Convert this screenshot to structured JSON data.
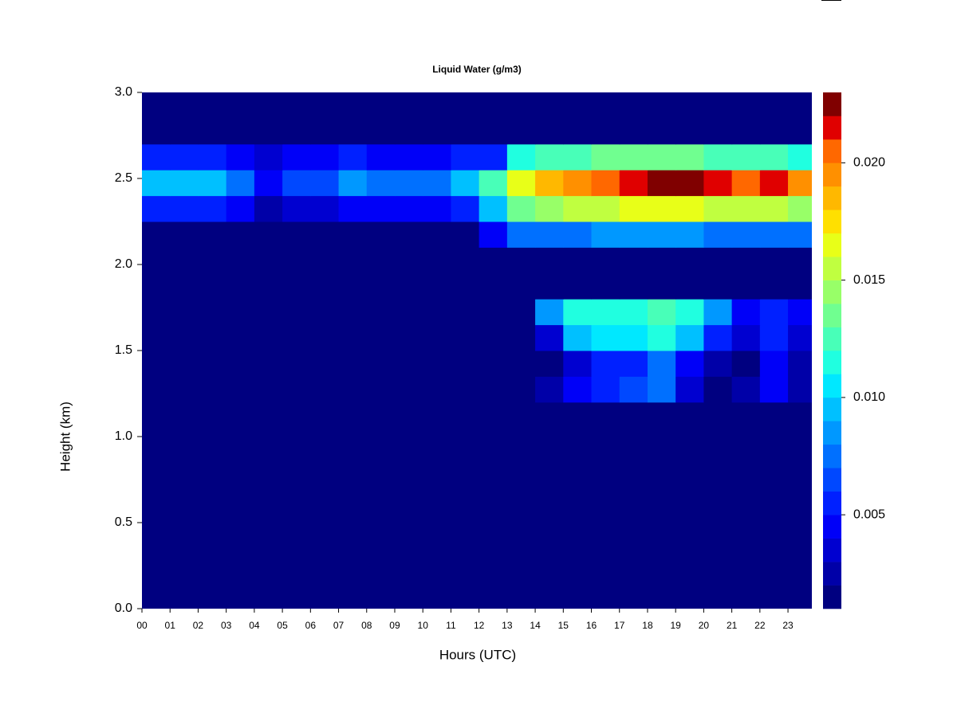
{
  "chart_data": {
    "type": "heatmap",
    "title": "Liquid Water (g/m3)",
    "x_label": "Hours (UTC)",
    "y_label": "Height (km)",
    "xlim": [
      0,
      23.85
    ],
    "ylim": [
      0,
      3
    ],
    "xticks": [
      {
        "value": 0,
        "label": "00"
      },
      {
        "value": 1,
        "label": "01"
      },
      {
        "value": 2,
        "label": "02"
      },
      {
        "value": 3,
        "label": "03"
      },
      {
        "value": 4,
        "label": "04"
      },
      {
        "value": 5,
        "label": "05"
      },
      {
        "value": 6,
        "label": "06"
      },
      {
        "value": 7,
        "label": "07"
      },
      {
        "value": 8,
        "label": "08"
      },
      {
        "value": 9,
        "label": "09"
      },
      10,
      11,
      12,
      13,
      14,
      15,
      16,
      17,
      18,
      19,
      20,
      21,
      22,
      23
    ],
    "yticks": [
      {
        "value": 0,
        "label": "0.0"
      },
      0.5,
      {
        "value": 1,
        "label": "1.0"
      },
      1.5,
      {
        "value": 2,
        "label": "2.0"
      },
      2.5,
      {
        "value": 3,
        "label": "3.0"
      }
    ],
    "xbins": [
      0,
      1,
      2,
      3,
      4,
      5,
      6,
      7,
      8,
      9,
      10,
      11,
      12,
      13,
      14,
      15,
      16,
      17,
      18,
      19,
      20,
      21,
      22,
      23,
      23.85
    ],
    "ybins": [
      0,
      0.15,
      0.3,
      0.45,
      0.6,
      0.75,
      0.9,
      1.05,
      1.2,
      1.35,
      1.5,
      1.65,
      1.8,
      1.95,
      2.1,
      2.25,
      2.4,
      2.55,
      2.7,
      2.85,
      3.0
    ],
    "z": [
      [
        0.001,
        0.001,
        0.001,
        0.001,
        0.001,
        0.001,
        0.001,
        0.001,
        0.001,
        0.001,
        0.001,
        0.001,
        0.001,
        0.001,
        0.001,
        0.001,
        0.001,
        0.001,
        0.001,
        0.001,
        0.001,
        0.001,
        0.001,
        0.001
      ],
      [
        0.001,
        0.001,
        0.001,
        0.001,
        0.001,
        0.001,
        0.001,
        0.001,
        0.001,
        0.001,
        0.001,
        0.001,
        0.001,
        0.001,
        0.001,
        0.001,
        0.001,
        0.001,
        0.001,
        0.001,
        0.001,
        0.001,
        0.001,
        0.001
      ],
      [
        0.001,
        0.001,
        0.001,
        0.001,
        0.001,
        0.001,
        0.001,
        0.001,
        0.001,
        0.001,
        0.001,
        0.001,
        0.001,
        0.001,
        0.001,
        0.001,
        0.001,
        0.001,
        0.001,
        0.001,
        0.001,
        0.001,
        0.001,
        0.001
      ],
      [
        0.001,
        0.001,
        0.001,
        0.001,
        0.001,
        0.001,
        0.001,
        0.001,
        0.001,
        0.001,
        0.001,
        0.001,
        0.001,
        0.001,
        0.001,
        0.001,
        0.001,
        0.001,
        0.001,
        0.001,
        0.001,
        0.001,
        0.001,
        0.001
      ],
      [
        0.001,
        0.001,
        0.001,
        0.001,
        0.001,
        0.001,
        0.001,
        0.001,
        0.001,
        0.001,
        0.001,
        0.001,
        0.001,
        0.001,
        0.001,
        0.001,
        0.001,
        0.001,
        0.001,
        0.001,
        0.001,
        0.001,
        0.001,
        0.001
      ],
      [
        0.001,
        0.001,
        0.001,
        0.001,
        0.001,
        0.001,
        0.001,
        0.001,
        0.001,
        0.001,
        0.001,
        0.001,
        0.001,
        0.001,
        0.001,
        0.001,
        0.001,
        0.001,
        0.001,
        0.001,
        0.001,
        0.001,
        0.001,
        0.001
      ],
      [
        0.001,
        0.001,
        0.001,
        0.001,
        0.001,
        0.001,
        0.001,
        0.001,
        0.001,
        0.001,
        0.001,
        0.001,
        0.001,
        0.001,
        0.001,
        0.001,
        0.001,
        0.001,
        0.001,
        0.001,
        0.001,
        0.001,
        0.001,
        0.001
      ],
      [
        0.001,
        0.001,
        0.001,
        0.001,
        0.001,
        0.001,
        0.001,
        0.001,
        0.001,
        0.001,
        0.001,
        0.001,
        0.001,
        0.001,
        0.001,
        0.001,
        0.001,
        0.001,
        0.001,
        0.001,
        0.001,
        0.001,
        0.001,
        0.001
      ],
      [
        0.001,
        0.001,
        0.001,
        0.001,
        0.001,
        0.001,
        0.001,
        0.001,
        0.001,
        0.001,
        0.001,
        0.001,
        0.001,
        0.001,
        0.002,
        0.004,
        0.005,
        0.006,
        0.007,
        0.003,
        0.001,
        0.002,
        0.004,
        0.002
      ],
      [
        0.001,
        0.001,
        0.001,
        0.001,
        0.001,
        0.001,
        0.001,
        0.001,
        0.001,
        0.001,
        0.001,
        0.001,
        0.001,
        0.001,
        0.001,
        0.003,
        0.005,
        0.005,
        0.007,
        0.004,
        0.002,
        0.001,
        0.004,
        0.002
      ],
      [
        0.001,
        0.001,
        0.001,
        0.001,
        0.001,
        0.001,
        0.001,
        0.001,
        0.001,
        0.001,
        0.001,
        0.001,
        0.001,
        0.001,
        0.003,
        0.009,
        0.01,
        0.01,
        0.011,
        0.009,
        0.005,
        0.003,
        0.005,
        0.003
      ],
      [
        0.001,
        0.001,
        0.001,
        0.001,
        0.001,
        0.001,
        0.001,
        0.001,
        0.001,
        0.001,
        0.001,
        0.001,
        0.001,
        0.001,
        0.008,
        0.011,
        0.011,
        0.011,
        0.012,
        0.011,
        0.008,
        0.004,
        0.005,
        0.004
      ],
      [
        0.001,
        0.001,
        0.001,
        0.001,
        0.001,
        0.001,
        0.001,
        0.001,
        0.001,
        0.001,
        0.001,
        0.001,
        0.001,
        0.001,
        0.001,
        0.001,
        0.001,
        0.001,
        0.001,
        0.001,
        0.001,
        0.001,
        0.001,
        0.001
      ],
      [
        0.001,
        0.001,
        0.001,
        0.001,
        0.001,
        0.001,
        0.001,
        0.001,
        0.001,
        0.001,
        0.001,
        0.001,
        0.001,
        0.001,
        0.001,
        0.001,
        0.001,
        0.001,
        0.001,
        0.001,
        0.001,
        0.001,
        0.001,
        0.001
      ],
      [
        0.001,
        0.001,
        0.001,
        0.001,
        0.001,
        0.001,
        0.001,
        0.001,
        0.001,
        0.001,
        0.001,
        0.001,
        0.004,
        0.007,
        0.007,
        0.007,
        0.008,
        0.008,
        0.008,
        0.008,
        0.007,
        0.007,
        0.007,
        0.007
      ],
      [
        0.005,
        0.005,
        0.005,
        0.004,
        0.002,
        0.003,
        0.003,
        0.004,
        0.004,
        0.004,
        0.004,
        0.005,
        0.009,
        0.013,
        0.014,
        0.015,
        0.015,
        0.016,
        0.016,
        0.016,
        0.015,
        0.015,
        0.015,
        0.014
      ],
      [
        0.009,
        0.009,
        0.009,
        0.007,
        0.004,
        0.006,
        0.006,
        0.008,
        0.007,
        0.007,
        0.007,
        0.009,
        0.012,
        0.016,
        0.018,
        0.019,
        0.02,
        0.021,
        0.022,
        0.022,
        0.021,
        0.02,
        0.021,
        0.019
      ],
      [
        0.005,
        0.005,
        0.005,
        0.004,
        0.003,
        0.004,
        0.004,
        0.005,
        0.004,
        0.004,
        0.004,
        0.005,
        0.005,
        0.011,
        0.012,
        0.012,
        0.013,
        0.013,
        0.013,
        0.013,
        0.012,
        0.012,
        0.012,
        0.011
      ],
      [
        0.001,
        0.001,
        0.001,
        0.001,
        0.001,
        0.001,
        0.001,
        0.001,
        0.001,
        0.001,
        0.001,
        0.001,
        0.001,
        0.001,
        0.001,
        0.001,
        0.001,
        0.001,
        0.001,
        0.001,
        0.001,
        0.001,
        0.001,
        0.001
      ],
      [
        0.001,
        0.001,
        0.001,
        0.001,
        0.001,
        0.001,
        0.001,
        0.001,
        0.001,
        0.001,
        0.001,
        0.001,
        0.001,
        0.001,
        0.001,
        0.001,
        0.001,
        0.001,
        0.001,
        0.001,
        0.001,
        0.001,
        0.001,
        0.001
      ]
    ],
    "levels": [
      0.001,
      0.002,
      0.003,
      0.004,
      0.005,
      0.006,
      0.007,
      0.008,
      0.009,
      0.01,
      0.011,
      0.012,
      0.013,
      0.014,
      0.015,
      0.016,
      0.017,
      0.018,
      0.019,
      0.02,
      0.021,
      0.022,
      0.023
    ],
    "colors": [
      "#000080",
      "#0000A8",
      "#0000D0",
      "#0000F8",
      "#0020FF",
      "#0048FF",
      "#0070FF",
      "#0098FF",
      "#00C0FF",
      "#00E8FF",
      "#20FFE0",
      "#48FFB8",
      "#70FF90",
      "#98FF68",
      "#C0FF40",
      "#E8FF18",
      "#FFE000",
      "#FFB800",
      "#FF9000",
      "#FF6800",
      "#E00000",
      "#800000"
    ],
    "colorbar_ticks": [
      0.005,
      {
        "value": 0.01,
        "label": "0.010"
      },
      0.015,
      {
        "value": 0.02,
        "label": "0.020"
      }
    ]
  }
}
